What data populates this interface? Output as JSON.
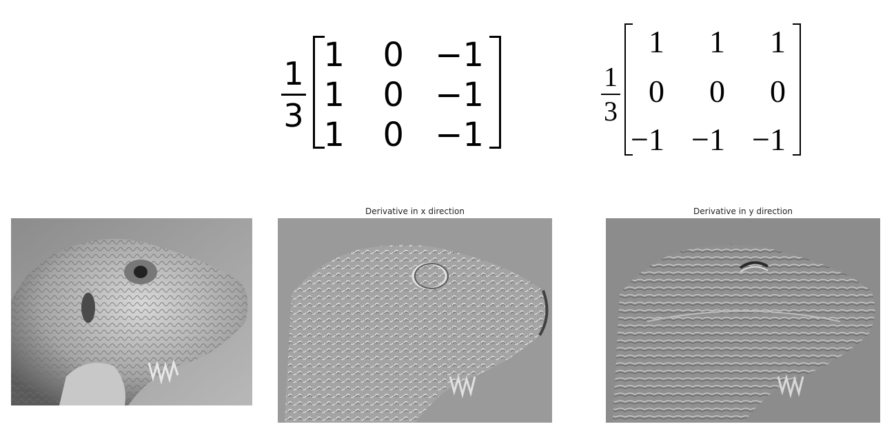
{
  "matrix_x": {
    "numerator": "1",
    "denominator": "3",
    "rows": [
      [
        "1",
        "0",
        "−1"
      ],
      [
        "1",
        "0",
        "−1"
      ],
      [
        "1",
        "0",
        "−1"
      ]
    ]
  },
  "matrix_y": {
    "numerator": "1",
    "denominator": "3",
    "rows": [
      [
        "1",
        "1",
        "1"
      ],
      [
        "0",
        "0",
        "0"
      ],
      [
        "−1",
        "−1",
        "−1"
      ]
    ]
  },
  "panels": {
    "dx_title": "Derivative in x direction",
    "dy_title": "Derivative in y direction"
  }
}
